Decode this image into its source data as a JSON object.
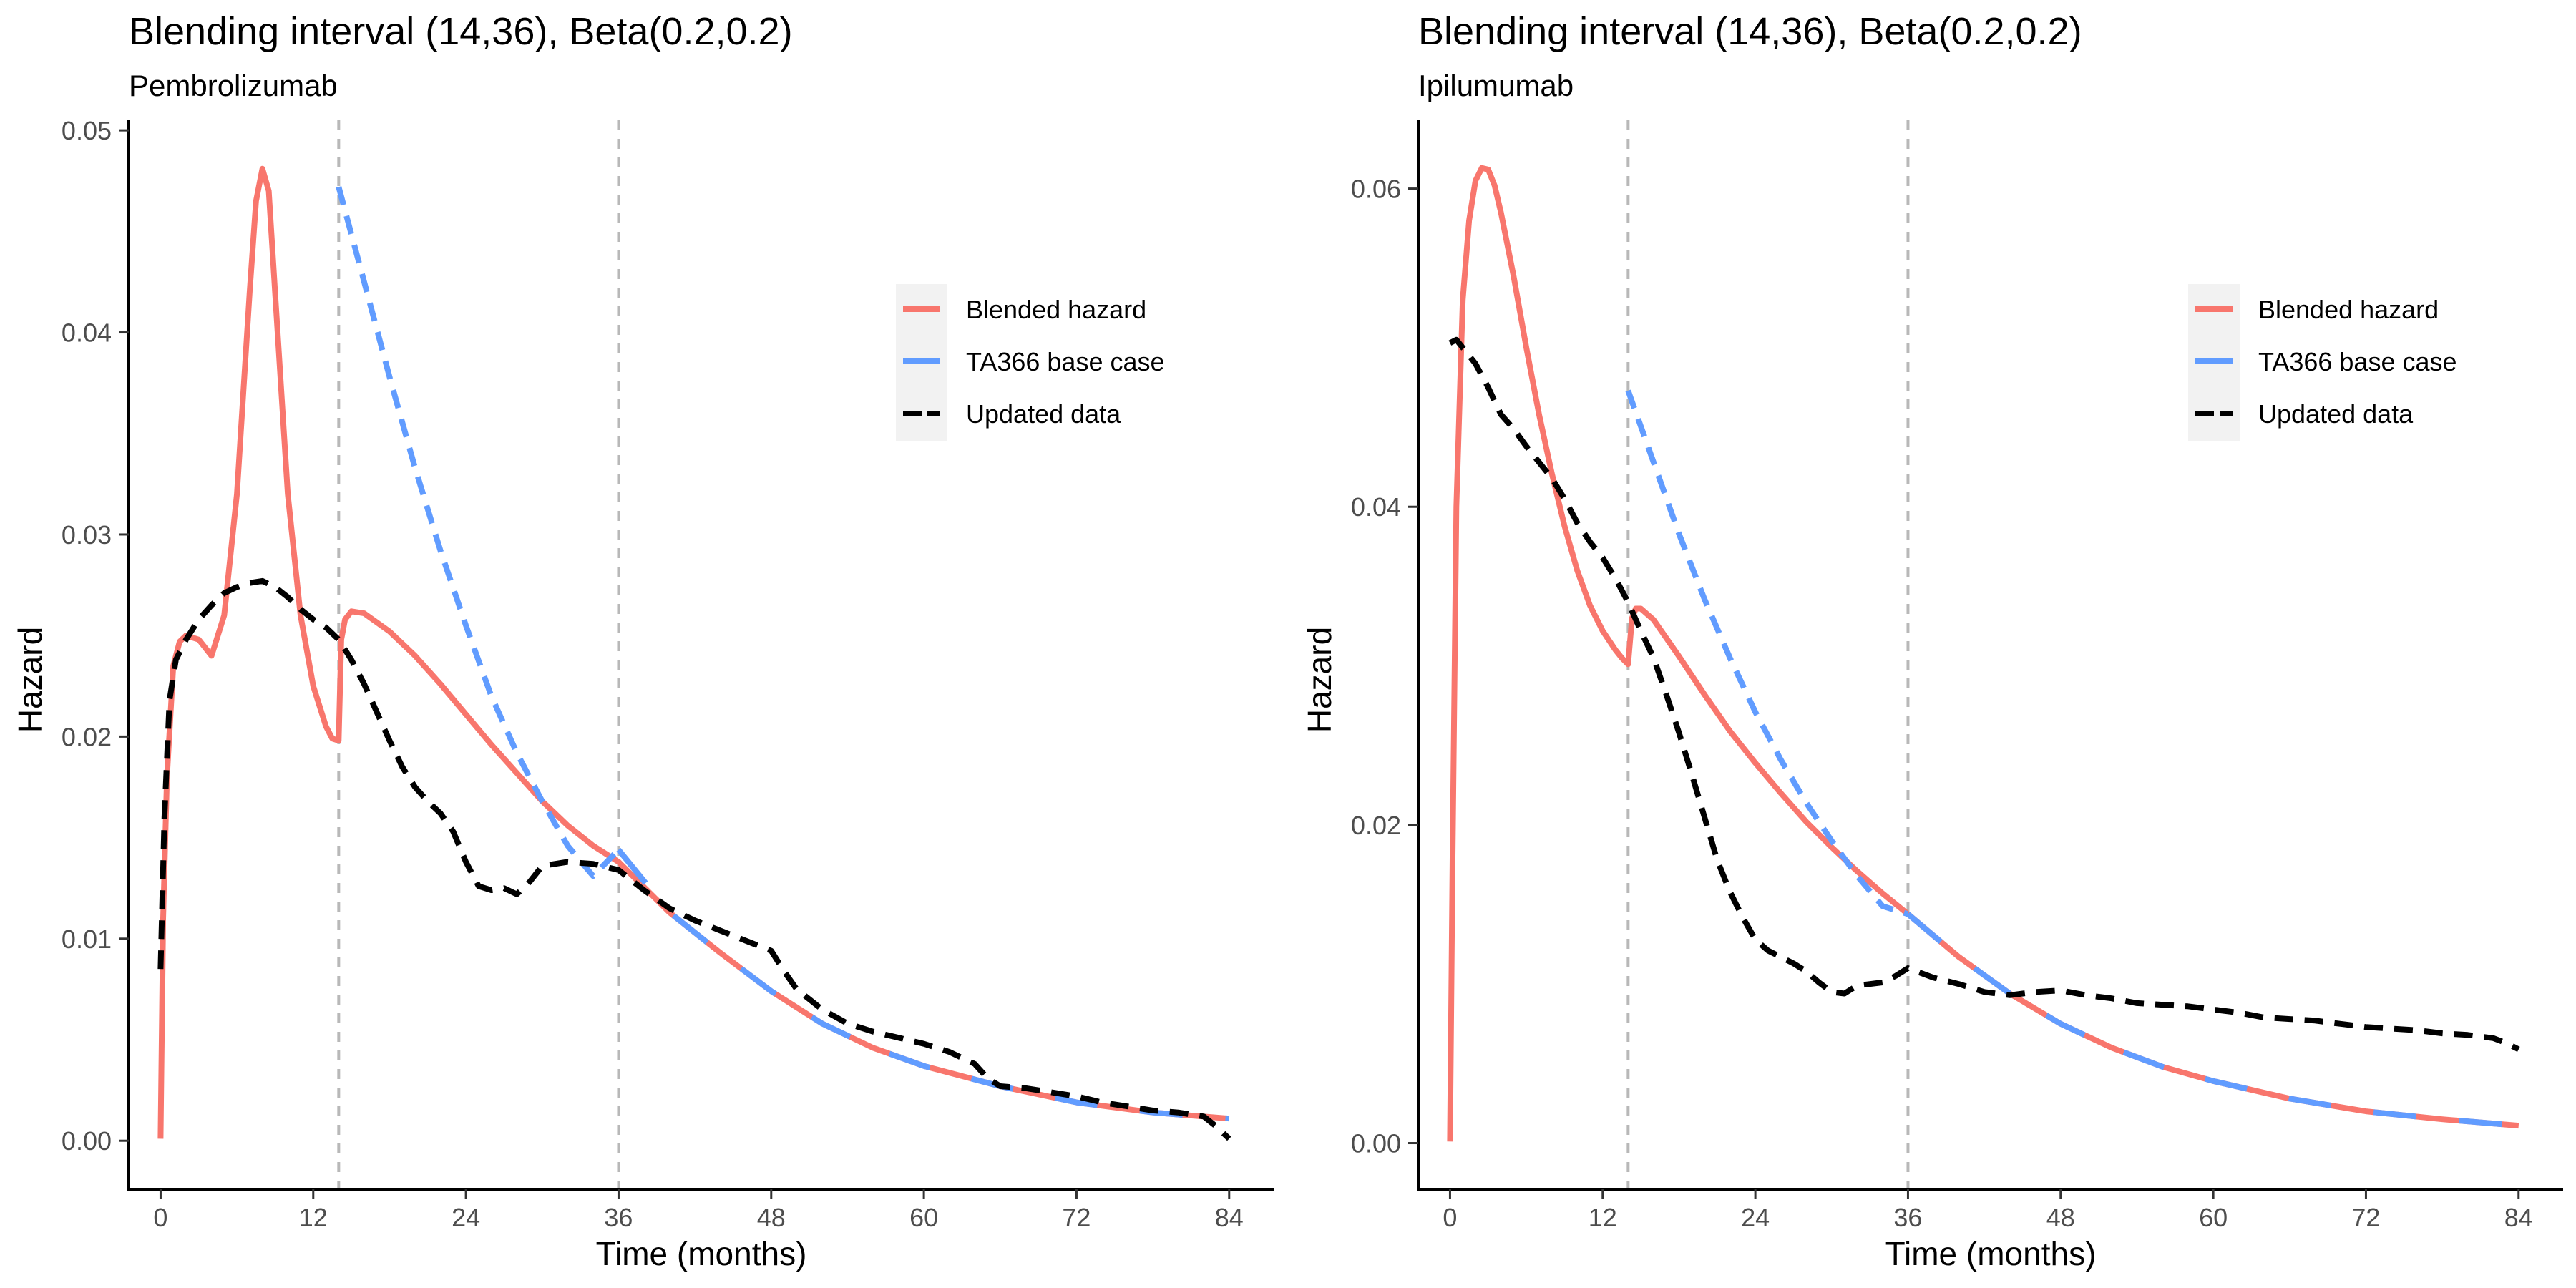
{
  "chart_data": [
    {
      "type": "line",
      "title": "Blending interval (14,36), Beta(0.2,0.2)",
      "subtitle": "Pembrolizumab",
      "xlabel": "Time (months)",
      "ylabel": "Hazard",
      "xlim": [
        -2.5,
        87.5
      ],
      "ylim": [
        -0.0024,
        0.0505
      ],
      "xticks": [
        0,
        12,
        24,
        36,
        48,
        60,
        72,
        84
      ],
      "yticks": [
        0.0,
        0.01,
        0.02,
        0.03,
        0.04,
        0.05
      ],
      "ytick_labels": [
        "0.00",
        "0.01",
        "0.02",
        "0.03",
        "0.04",
        "0.05"
      ],
      "reference_lines_x": [
        14,
        36
      ],
      "legend_position": "top-right",
      "grid": false,
      "series": [
        {
          "name": "Blended hazard",
          "color": "#F8766D",
          "style": "solid",
          "x": [
            0,
            0.2,
            0.5,
            1,
            1.5,
            2,
            3,
            4,
            5,
            6,
            7,
            7.5,
            8,
            8.5,
            9,
            10,
            11,
            12,
            13,
            13.5,
            14,
            14.2,
            14.5,
            15,
            16,
            18,
            20,
            22,
            24,
            26,
            28,
            30,
            32,
            34,
            36,
            40,
            44,
            48,
            52,
            56,
            60,
            66,
            72,
            78,
            84
          ],
          "y": [
            0.0001,
            0.011,
            0.018,
            0.0235,
            0.0247,
            0.025,
            0.0248,
            0.024,
            0.026,
            0.032,
            0.042,
            0.0465,
            0.0481,
            0.047,
            0.042,
            0.032,
            0.026,
            0.0225,
            0.0205,
            0.0199,
            0.0198,
            0.0248,
            0.0258,
            0.0262,
            0.0261,
            0.0252,
            0.024,
            0.0226,
            0.0211,
            0.0196,
            0.0182,
            0.0168,
            0.0156,
            0.0146,
            0.0138,
            0.0113,
            0.0093,
            0.0074,
            0.0058,
            0.0046,
            0.0037,
            0.0027,
            0.0019,
            0.0014,
            0.0011
          ]
        },
        {
          "name": "TA366 base case",
          "color": "#619CFF",
          "style": "dashed-then-solid",
          "x": [
            14,
            16,
            18,
            20,
            22,
            24,
            26,
            28,
            30,
            32,
            34,
            36,
            40,
            44,
            48,
            52,
            56,
            60,
            66,
            72,
            78,
            84
          ],
          "y": [
            0.0472,
            0.0425,
            0.0378,
            0.0333,
            0.0292,
            0.0255,
            0.022,
            0.0192,
            0.0168,
            0.0146,
            0.0131,
            0.0144,
            0.0113,
            0.0093,
            0.0074,
            0.0058,
            0.0046,
            0.0037,
            0.0027,
            0.0019,
            0.0014,
            0.0011
          ]
        },
        {
          "name": "Updated data",
          "color": "#000000",
          "style": "dashed",
          "x": [
            0,
            0.3,
            0.7,
            1.2,
            2,
            3,
            4,
            5,
            6,
            7,
            8,
            9,
            10,
            11,
            12,
            13,
            14,
            15,
            16,
            17,
            18,
            19,
            20,
            21,
            22,
            23,
            24,
            25,
            26,
            27,
            28,
            29,
            30,
            32,
            34,
            36,
            38,
            40,
            42,
            44,
            46,
            48,
            49,
            50,
            52,
            54,
            56,
            58,
            60,
            62,
            64,
            65,
            66,
            68,
            70,
            72,
            74,
            76,
            78,
            80,
            82,
            83,
            84
          ],
          "y": [
            0.0085,
            0.016,
            0.0218,
            0.0238,
            0.0248,
            0.0258,
            0.0265,
            0.0271,
            0.0274,
            0.0276,
            0.0277,
            0.0274,
            0.0269,
            0.0263,
            0.0258,
            0.0254,
            0.0248,
            0.0238,
            0.0226,
            0.0212,
            0.0198,
            0.0185,
            0.0175,
            0.0168,
            0.0162,
            0.0153,
            0.0138,
            0.0126,
            0.0124,
            0.0125,
            0.0122,
            0.0128,
            0.0136,
            0.0138,
            0.0137,
            0.0134,
            0.0124,
            0.0115,
            0.0109,
            0.0104,
            0.0099,
            0.0094,
            0.0084,
            0.0075,
            0.0065,
            0.0058,
            0.0054,
            0.0051,
            0.0048,
            0.0044,
            0.0038,
            0.0031,
            0.0027,
            0.0026,
            0.0024,
            0.0022,
            0.0019,
            0.0017,
            0.0015,
            0.0014,
            0.0012,
            0.0007,
            0.0001
          ]
        }
      ]
    },
    {
      "type": "line",
      "title": "Blending interval (14,36), Beta(0.2,0.2)",
      "subtitle": "Ipilumumab",
      "xlabel": "Time (months)",
      "ylabel": "Hazard",
      "xlim": [
        -2.5,
        87.5
      ],
      "ylim": [
        -0.0029,
        0.0643
      ],
      "xticks": [
        0,
        12,
        24,
        36,
        48,
        60,
        72,
        84
      ],
      "yticks": [
        0.0,
        0.02,
        0.04,
        0.06
      ],
      "ytick_labels": [
        "0.00",
        "0.02",
        "0.04",
        "0.06"
      ],
      "reference_lines_x": [
        14,
        36
      ],
      "legend_position": "top-right",
      "grid": false,
      "series": [
        {
          "name": "Blended hazard",
          "color": "#F8766D",
          "style": "solid",
          "x": [
            0,
            0.2,
            0.5,
            1,
            1.5,
            2,
            2.5,
            3,
            3.5,
            4,
            5,
            6,
            7,
            8,
            9,
            10,
            11,
            12,
            13,
            13.5,
            14,
            14.3,
            14.6,
            15,
            16,
            18,
            20,
            22,
            24,
            26,
            28,
            30,
            32,
            34,
            36,
            40,
            44,
            48,
            52,
            56,
            60,
            66,
            72,
            78,
            84
          ],
          "y": [
            0.0001,
            0.018,
            0.04,
            0.053,
            0.058,
            0.0605,
            0.0613,
            0.0612,
            0.0602,
            0.0585,
            0.0545,
            0.05,
            0.0458,
            0.0421,
            0.0388,
            0.036,
            0.0338,
            0.0322,
            0.031,
            0.0305,
            0.0301,
            0.033,
            0.0336,
            0.0336,
            0.0329,
            0.0306,
            0.0282,
            0.0259,
            0.0239,
            0.022,
            0.0202,
            0.0186,
            0.0171,
            0.0157,
            0.0144,
            0.0117,
            0.0094,
            0.0075,
            0.006,
            0.0048,
            0.0039,
            0.0028,
            0.002,
            0.0015,
            0.0011
          ]
        },
        {
          "name": "TA366 base case",
          "color": "#619CFF",
          "style": "dashed-then-solid",
          "x": [
            14,
            16,
            18,
            20,
            22,
            24,
            26,
            28,
            30,
            32,
            34,
            36,
            40,
            44,
            48,
            52,
            56,
            60,
            66,
            72,
            78,
            84
          ],
          "y": [
            0.0473,
            0.0428,
            0.0383,
            0.0342,
            0.0305,
            0.0271,
            0.0241,
            0.0214,
            0.019,
            0.0168,
            0.0149,
            0.0144,
            0.0117,
            0.0094,
            0.0075,
            0.006,
            0.0048,
            0.0039,
            0.0028,
            0.002,
            0.0015,
            0.0011
          ]
        },
        {
          "name": "Updated data",
          "color": "#000000",
          "style": "dashed",
          "x": [
            0,
            0.5,
            1,
            2,
            3,
            4,
            5,
            6,
            7,
            8,
            9,
            10,
            11,
            12,
            13,
            14,
            15,
            16,
            17,
            18,
            19,
            20,
            21,
            22,
            23,
            24,
            25,
            26,
            27,
            28,
            29,
            30,
            31,
            32,
            33,
            34,
            35,
            36,
            38,
            40,
            42,
            44,
            46,
            48,
            50,
            52,
            54,
            56,
            58,
            60,
            62,
            64,
            66,
            68,
            70,
            72,
            74,
            76,
            78,
            80,
            82,
            83,
            84
          ],
          "y": [
            0.0503,
            0.0505,
            0.05,
            0.049,
            0.0475,
            0.0458,
            0.0449,
            0.0438,
            0.0428,
            0.0418,
            0.0405,
            0.039,
            0.0378,
            0.0368,
            0.0355,
            0.034,
            0.0322,
            0.0305,
            0.0282,
            0.0258,
            0.0232,
            0.0205,
            0.0178,
            0.0158,
            0.0142,
            0.0128,
            0.0121,
            0.0117,
            0.0113,
            0.0108,
            0.0101,
            0.0095,
            0.0094,
            0.0099,
            0.01,
            0.0101,
            0.0105,
            0.011,
            0.0104,
            0.01,
            0.0095,
            0.0093,
            0.0095,
            0.0096,
            0.0093,
            0.0091,
            0.0088,
            0.0087,
            0.0086,
            0.0084,
            0.0082,
            0.0079,
            0.0078,
            0.0077,
            0.0075,
            0.0073,
            0.0072,
            0.0071,
            0.0069,
            0.0068,
            0.0066,
            0.0063,
            0.0059
          ]
        }
      ]
    }
  ]
}
